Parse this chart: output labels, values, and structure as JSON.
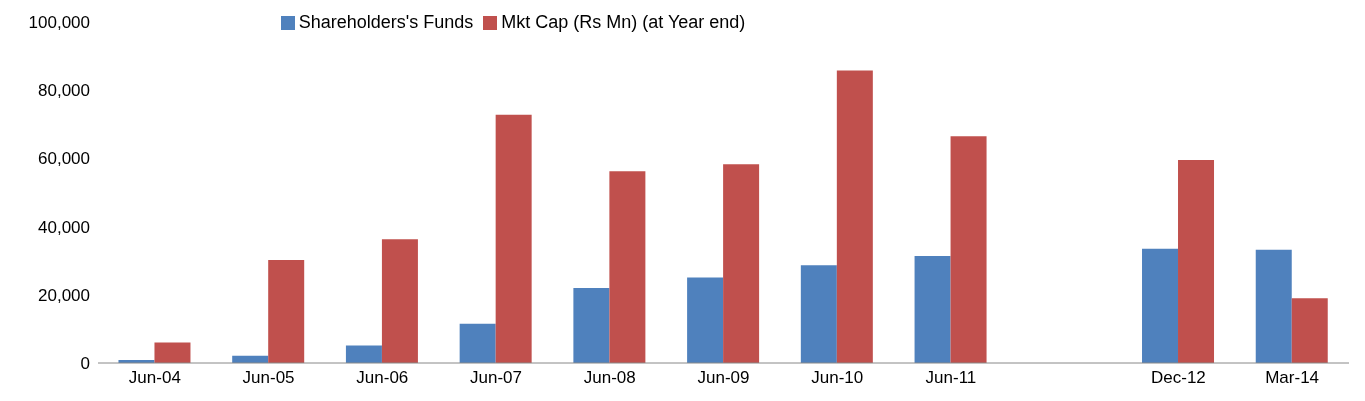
{
  "chart_data": {
    "type": "bar",
    "categories": [
      "Jun-04",
      "Jun-05",
      "Jun-06",
      "Jun-07",
      "Jun-08",
      "Jun-09",
      "Jun-10",
      "Jun-11",
      null,
      "Dec-12",
      "Mar-14"
    ],
    "series": [
      {
        "name": "Shareholders's Funds",
        "color": "#4f81bd",
        "values": [
          900,
          2100,
          5100,
          11500,
          22000,
          25100,
          28700,
          31400,
          null,
          33500,
          33200
        ]
      },
      {
        "name": "Mkt Cap (Rs Mn) (at Year end)",
        "color": "#c0504d",
        "values": [
          6000,
          30200,
          36300,
          72800,
          56200,
          58300,
          85800,
          66500,
          null,
          59500,
          19000
        ]
      }
    ],
    "ylim": [
      0,
      100000
    ],
    "yticks": [
      0,
      {
        "value": 20000,
        "label": "20,000"
      },
      {
        "value": 40000,
        "label": "40,000"
      },
      {
        "value": 60000,
        "label": "60,000"
      },
      {
        "value": 80000,
        "label": "80,000"
      },
      {
        "value": 100000,
        "label": "100,000"
      }
    ],
    "grid": false,
    "legend": "top"
  }
}
